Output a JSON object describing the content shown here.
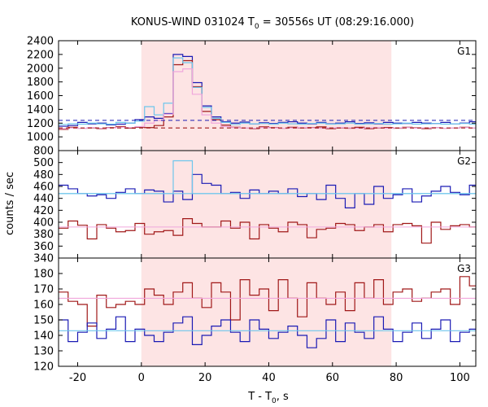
{
  "chart_data": {
    "type": "line",
    "title_main": "KONUS-WIND 031024 T",
    "title_sub": "0",
    "title_rest": " = 30556s UT (08:29:16.000)",
    "xlabel_main": "T - T",
    "xlabel_sub": "0",
    "xlabel_rest": ", s",
    "ylabel": "counts / sec",
    "xlim": [
      -26,
      105
    ],
    "xticks": [
      -20,
      0,
      20,
      40,
      60,
      80,
      100
    ],
    "shaded_interval": [
      0,
      78.5
    ],
    "bin_edges": [
      -26,
      -23,
      -20,
      -17,
      -14,
      -11,
      -8,
      -5,
      -2,
      1,
      4,
      7,
      10,
      13,
      16,
      19,
      22,
      25,
      28,
      31,
      34,
      37,
      40,
      43,
      46,
      49,
      52,
      55,
      58,
      61,
      64,
      67,
      70,
      73,
      76,
      79,
      82,
      85,
      88,
      91,
      94,
      97,
      100,
      103,
      105
    ],
    "panels": [
      {
        "label": "G1",
        "ylim": [
          800,
          2400
        ],
        "yticks": [
          800,
          1000,
          1200,
          1400,
          1600,
          1800,
          2000,
          2200,
          2400
        ],
        "series": [
          {
            "color": "#1a1ab4",
            "values": [
              1155,
              1165,
              1210,
              1190,
              1200,
              1175,
              1185,
              1200,
              1250,
              1290,
              1270,
              1340,
              2200,
              2170,
              1790,
              1450,
              1290,
              1220,
              1200,
              1215,
              1190,
              1205,
              1195,
              1210,
              1220,
              1200,
              1190,
              1210,
              1190,
              1200,
              1220,
              1195,
              1205,
              1190,
              1210,
              1200,
              1195,
              1210,
              1200,
              1195,
              1210,
              1190,
              1200,
              1220
            ]
          },
          {
            "color": "#a01818",
            "values": [
              1110,
              1140,
              1125,
              1130,
              1120,
              1135,
              1150,
              1125,
              1140,
              1135,
              1165,
              1290,
              2050,
              2110,
              1730,
              1370,
              1250,
              1170,
              1140,
              1130,
              1120,
              1145,
              1135,
              1125,
              1140,
              1130,
              1135,
              1145,
              1120,
              1130,
              1125,
              1140,
              1120,
              1130,
              1135,
              1125,
              1140,
              1130,
              1120,
              1135,
              1125,
              1130,
              1140,
              1130
            ]
          },
          {
            "color": "#6ec6ec",
            "values": [
              1180,
              1190,
              1185,
              1200,
              1190,
              1185,
              1210,
              1200,
              1230,
              1440,
              1320,
              1490,
              2150,
              2080,
              1720,
              1430,
              1270,
              1210,
              1180,
              1200,
              1190,
              1195,
              1185,
              1200,
              1190,
              1185,
              1195,
              1200,
              1185,
              1190,
              1200,
              1185,
              1190,
              1195,
              1185,
              1190,
              1200,
              1185,
              1190,
              1195,
              1185,
              1190,
              1195,
              1185
            ]
          },
          {
            "color": "#f0a6dc",
            "values": [
              1120,
              1130,
              1125,
              1135,
              1125,
              1130,
              1140,
              1135,
              1150,
              1200,
              1240,
              1330,
              1950,
              1990,
              1620,
              1320,
              1200,
              1150,
              1135,
              1130,
              1125,
              1135,
              1130,
              1125,
              1130,
              1135,
              1130,
              1125,
              1130,
              1135,
              1130,
              1125,
              1130,
              1135,
              1125,
              1130,
              1135,
              1125,
              1130,
              1135,
              1125,
              1130,
              1135,
              1130
            ]
          }
        ],
        "baselines": [
          {
            "color": "#1a1ab4",
            "value": 1240
          },
          {
            "color": "#a01818",
            "value": 1130
          }
        ]
      },
      {
        "label": "G2",
        "ylim": [
          340,
          520
        ],
        "yticks": [
          340,
          360,
          380,
          400,
          420,
          440,
          460,
          480,
          500
        ],
        "series": [
          {
            "color": "#1a1ab4",
            "values": [
              462,
              456,
              448,
              444,
              446,
              440,
              450,
              456,
              448,
              454,
              452,
              434,
              452,
              438,
              480,
              465,
              462,
              448,
              450,
              440,
              454,
              448,
              452,
              448,
              456,
              443,
              448,
              438,
              462,
              440,
              424,
              448,
              430,
              460,
              440,
              446,
              456,
              434,
              444,
              452,
              460,
              450,
              446,
              462
            ]
          },
          {
            "color": "#a01818",
            "values": [
              390,
              402,
              395,
              372,
              396,
              390,
              384,
              386,
              398,
              380,
              384,
              386,
              378,
              406,
              398,
              392,
              392,
              402,
              390,
              400,
              372,
              396,
              390,
              384,
              400,
              396,
              374,
              388,
              390,
              398,
              396,
              386,
              392,
              396,
              384,
              396,
              398,
              394,
              365,
              400,
              388,
              394,
              396,
              392
            ]
          },
          {
            "color": "#6ec6ec",
            "values": [
              448,
              448,
              448,
              448,
              448,
              448,
              448,
              448,
              448,
              448,
              448,
              448,
              503,
              503,
              448,
              448,
              448,
              448,
              448,
              448,
              448,
              448,
              448,
              448,
              448,
              448,
              448,
              448,
              448,
              448,
              448,
              448,
              448,
              448,
              448,
              448,
              448,
              448,
              448,
              448,
              448,
              448,
              448,
              448
            ]
          }
        ],
        "baselines": [
          {
            "color": "#6ec6ec",
            "value": 448
          },
          {
            "color": "#f0a6dc",
            "value": 392
          }
        ]
      },
      {
        "label": "G3",
        "ylim": [
          120,
          190
        ],
        "yticks": [
          120,
          130,
          140,
          150,
          160,
          170,
          180
        ],
        "series": [
          {
            "color": "#a01818",
            "values": [
              168,
              162,
              160,
              146,
              166,
              158,
              160,
              162,
              160,
              170,
              166,
              160,
              168,
              174,
              164,
              158,
              174,
              168,
              150,
              176,
              166,
              170,
              156,
              176,
              164,
              152,
              174,
              164,
              160,
              168,
              156,
              174,
              164,
              176,
              160,
              168,
              170,
              162,
              164,
              168,
              170,
              160,
              178,
              172
            ]
          },
          {
            "color": "#1a1ab4",
            "values": [
              150,
              136,
              142,
              148,
              138,
              144,
              152,
              136,
              144,
              140,
              136,
              142,
              148,
              152,
              134,
              140,
              146,
              150,
              142,
              136,
              150,
              144,
              138,
              142,
              146,
              140,
              132,
              138,
              150,
              136,
              148,
              142,
              138,
              152,
              144,
              136,
              142,
              148,
              138,
              144,
              150,
              136,
              142,
              144
            ]
          }
        ],
        "baselines": [
          {
            "color": "#f0a6dc",
            "value": 164
          },
          {
            "color": "#6ec6ec",
            "value": 143
          }
        ]
      }
    ]
  }
}
